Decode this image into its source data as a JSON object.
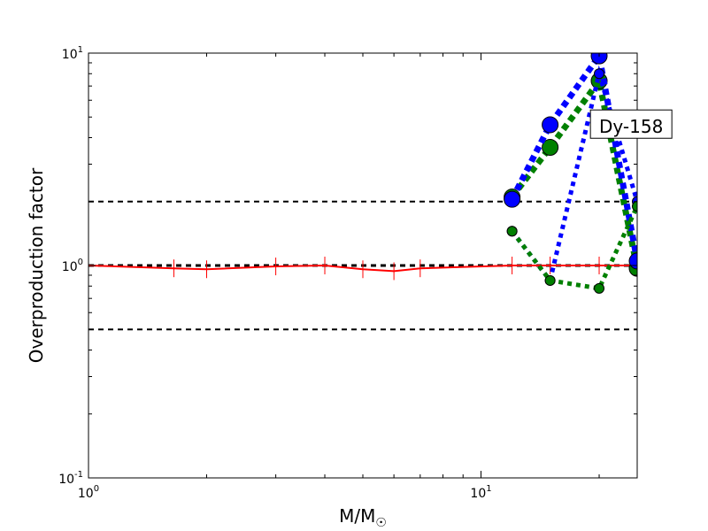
{
  "chart_data": {
    "type": "line",
    "xscale": "log",
    "yscale": "log",
    "xlim": [
      1,
      25
    ],
    "ylim": [
      0.1,
      10
    ],
    "xlabel": "M/M",
    "xlabel_sub": "☉",
    "ylabel": "Overproduction factor",
    "grid": false,
    "legend": "none",
    "xticks": [
      {
        "value": 1,
        "base": "10",
        "exp": "0"
      },
      {
        "value": 10,
        "base": "10",
        "exp": "1"
      }
    ],
    "yticks": [
      {
        "value": 0.1,
        "base": "10",
        "exp": "-1"
      },
      {
        "value": 1,
        "base": "10",
        "exp": "0"
      },
      {
        "value": 10,
        "base": "10",
        "exp": "1"
      }
    ],
    "reference_lines": [
      {
        "y": 0.5,
        "color": "#000000",
        "style": "dashed"
      },
      {
        "y": 1.0,
        "color": "#000000",
        "style": "dashed-bold"
      },
      {
        "y": 2.0,
        "color": "#000000",
        "style": "dashed"
      }
    ],
    "annotation": {
      "text": "Dy-158",
      "x": 19.2,
      "y": 4.5
    },
    "series": [
      {
        "color": "#ff0000",
        "style": "solid",
        "marker": "vline",
        "x": [
          1,
          1.65,
          2,
          3,
          4,
          5,
          6,
          7,
          12,
          15,
          20,
          25
        ],
        "y": [
          1.0,
          0.97,
          0.96,
          0.99,
          1.0,
          0.96,
          0.94,
          0.97,
          1.0,
          1.0,
          1.0,
          1.0
        ]
      },
      {
        "color": "#008000",
        "style": "dotted-thick",
        "marker": "circle",
        "x": [
          12,
          15,
          20,
          25
        ],
        "y": [
          2.1,
          3.6,
          7.4,
          0.97
        ]
      },
      {
        "color": "#0000ff",
        "style": "dotted-thick",
        "marker": "circle",
        "x": [
          12,
          15,
          20,
          25
        ],
        "y": [
          2.05,
          4.6,
          9.7,
          1.05
        ]
      },
      {
        "color": "#0000ff",
        "style": "dotted",
        "marker": "circle-small",
        "x": [
          12,
          15,
          20,
          25
        ],
        "y": [
          1.45,
          0.85,
          8.0,
          2.0
        ]
      },
      {
        "color": "#008000",
        "style": "dotted",
        "marker": "circle-small",
        "x": [
          12,
          15,
          20,
          25
        ],
        "y": [
          1.45,
          0.85,
          0.78,
          1.9
        ]
      }
    ]
  }
}
